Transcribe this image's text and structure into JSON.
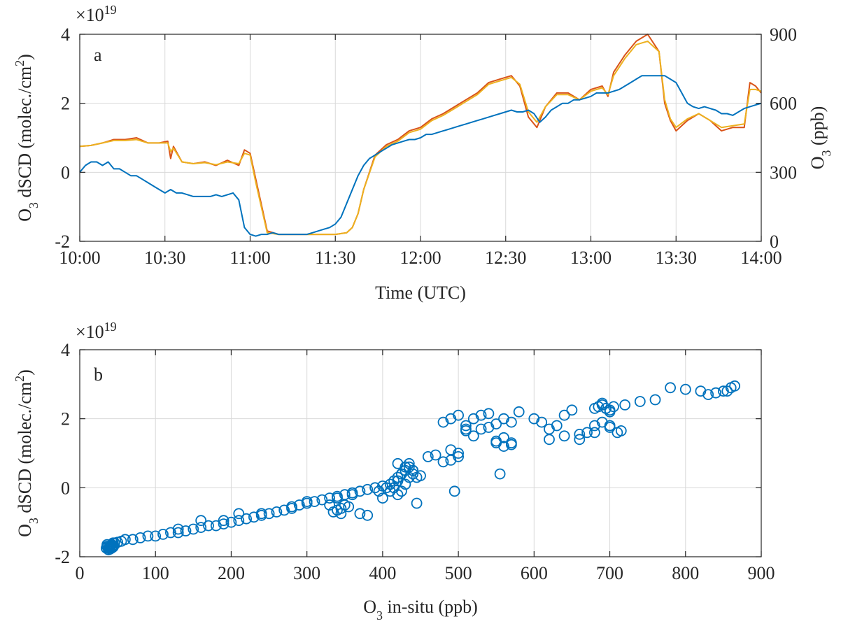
{
  "chart_data": [
    {
      "type": "line",
      "panel_label": "a",
      "xlabel": "Time (UTC)",
      "ylabel_left": {
        "base": "O",
        "sub": "3",
        "rest": " dSCD (molec./cm",
        "sup": "2",
        "close": ")"
      },
      "ylabel_right": {
        "base": "O",
        "sub": "3",
        "rest": " (ppb)"
      },
      "y_exponent": {
        "prefix": "×10",
        "power": "19"
      },
      "xlim": [
        0,
        240
      ],
      "ylim_left": [
        -2,
        4
      ],
      "ylim_right": [
        0,
        900
      ],
      "x_ticks": [
        0,
        30,
        60,
        90,
        120,
        150,
        180,
        210,
        240
      ],
      "x_tick_labels": [
        "10:00",
        "10:30",
        "11:00",
        "11:30",
        "12:00",
        "12:30",
        "13:00",
        "13:30",
        "14:00"
      ],
      "y_ticks_left": [
        -2,
        0,
        2,
        4
      ],
      "y_tick_labels_left": [
        "-2",
        "0",
        "2",
        "4"
      ],
      "y_ticks_right": [
        0,
        300,
        600,
        900
      ],
      "y_tick_labels_right": [
        "0",
        "300",
        "600",
        "900"
      ],
      "grid": true,
      "series": [
        {
          "axis": "left",
          "color": "#0072bd",
          "x": [
            0,
            2,
            4,
            6,
            8,
            10,
            12,
            14,
            16,
            18,
            20,
            22,
            24,
            26,
            28,
            30,
            32,
            34,
            36,
            38,
            40,
            42,
            44,
            46,
            48,
            50,
            52,
            54,
            56,
            58,
            60,
            62,
            64,
            66,
            68,
            70,
            72,
            74,
            76,
            78,
            80,
            82,
            84,
            86,
            88,
            90,
            92,
            94,
            96,
            98,
            100,
            102,
            104,
            106,
            108,
            110,
            112,
            114,
            116,
            118,
            120,
            122,
            124,
            126,
            128,
            130,
            132,
            134,
            136,
            138,
            140,
            142,
            144,
            146,
            148,
            150,
            152,
            154,
            156,
            158,
            160,
            162,
            164,
            166,
            168,
            170,
            172,
            174,
            176,
            178,
            180,
            182,
            184,
            186,
            188,
            190,
            192,
            194,
            196,
            198,
            200,
            202,
            204,
            206,
            208,
            210,
            212,
            214,
            216,
            218,
            220,
            222,
            224,
            226,
            228,
            230,
            232,
            234,
            236,
            238,
            240
          ],
          "y": [
            0.0,
            0.2,
            0.3,
            0.3,
            0.2,
            0.3,
            0.1,
            0.1,
            0.0,
            -0.1,
            -0.1,
            -0.2,
            -0.3,
            -0.4,
            -0.5,
            -0.6,
            -0.5,
            -0.6,
            -0.6,
            -0.65,
            -0.7,
            -0.7,
            -0.7,
            -0.7,
            -0.65,
            -0.7,
            -0.65,
            -0.6,
            -0.8,
            -1.6,
            -1.8,
            -1.85,
            -1.8,
            -1.8,
            -1.75,
            -1.8,
            -1.8,
            -1.8,
            -1.8,
            -1.8,
            -1.8,
            -1.75,
            -1.7,
            -1.65,
            -1.6,
            -1.5,
            -1.3,
            -0.9,
            -0.5,
            -0.1,
            0.2,
            0.4,
            0.5,
            0.6,
            0.7,
            0.8,
            0.85,
            0.9,
            0.95,
            0.95,
            1.0,
            1.1,
            1.1,
            1.15,
            1.2,
            1.25,
            1.3,
            1.35,
            1.4,
            1.45,
            1.5,
            1.55,
            1.6,
            1.65,
            1.7,
            1.75,
            1.8,
            1.75,
            1.75,
            1.8,
            1.7,
            1.45,
            1.6,
            1.8,
            1.9,
            2.0,
            2.0,
            2.1,
            2.1,
            2.15,
            2.2,
            2.3,
            2.3,
            2.3,
            2.35,
            2.4,
            2.5,
            2.6,
            2.7,
            2.8,
            2.8,
            2.8,
            2.8,
            2.8,
            2.7,
            2.6,
            2.3,
            2.0,
            1.9,
            1.85,
            1.9,
            1.85,
            1.8,
            1.7,
            1.7,
            1.65,
            1.75,
            1.85,
            1.9,
            1.95,
            2.0
          ]
        },
        {
          "axis": "left",
          "color": "#d95319",
          "x": [
            0,
            4,
            8,
            12,
            16,
            20,
            24,
            28,
            31,
            32,
            33,
            36,
            40,
            44,
            48,
            52,
            56,
            58,
            60,
            62,
            66,
            70,
            74,
            78,
            82,
            86,
            90,
            94,
            96,
            98,
            100,
            104,
            108,
            112,
            116,
            120,
            124,
            128,
            132,
            136,
            140,
            144,
            148,
            152,
            155,
            158,
            161,
            164,
            168,
            172,
            176,
            180,
            184,
            186,
            188,
            192,
            196,
            200,
            204,
            206,
            208,
            210,
            214,
            218,
            222,
            226,
            230,
            234,
            236,
            238,
            240
          ],
          "y": [
            0.75,
            0.78,
            0.85,
            0.95,
            0.95,
            1.0,
            0.85,
            0.85,
            0.9,
            0.4,
            0.75,
            0.3,
            0.25,
            0.3,
            0.2,
            0.35,
            0.2,
            0.65,
            0.55,
            -0.2,
            -1.7,
            -1.8,
            -1.8,
            -1.8,
            -1.8,
            -1.8,
            -1.8,
            -1.75,
            -1.6,
            -1.2,
            -0.5,
            0.5,
            0.8,
            0.95,
            1.2,
            1.3,
            1.55,
            1.7,
            1.9,
            2.1,
            2.3,
            2.6,
            2.7,
            2.8,
            2.5,
            1.6,
            1.3,
            1.9,
            2.3,
            2.3,
            2.1,
            2.4,
            2.5,
            2.2,
            2.9,
            3.4,
            3.8,
            4.0,
            3.5,
            2.0,
            1.5,
            1.2,
            1.5,
            1.7,
            1.5,
            1.2,
            1.3,
            1.3,
            2.6,
            2.5,
            2.3
          ]
        },
        {
          "axis": "left",
          "color": "#edb120",
          "x": [
            0,
            4,
            8,
            12,
            16,
            20,
            24,
            28,
            31,
            32,
            33,
            36,
            40,
            44,
            48,
            52,
            56,
            58,
            60,
            62,
            66,
            70,
            74,
            78,
            82,
            86,
            90,
            94,
            96,
            98,
            100,
            104,
            108,
            112,
            116,
            120,
            124,
            128,
            132,
            136,
            140,
            144,
            148,
            152,
            155,
            158,
            161,
            164,
            168,
            172,
            176,
            180,
            184,
            186,
            188,
            192,
            196,
            200,
            204,
            206,
            208,
            210,
            214,
            218,
            222,
            226,
            230,
            234,
            236,
            238,
            240
          ],
          "y": [
            0.75,
            0.78,
            0.85,
            0.92,
            0.92,
            0.95,
            0.85,
            0.85,
            0.85,
            0.6,
            0.7,
            0.3,
            0.25,
            0.28,
            0.22,
            0.3,
            0.25,
            0.55,
            0.5,
            -0.3,
            -1.75,
            -1.8,
            -1.8,
            -1.8,
            -1.8,
            -1.8,
            -1.8,
            -1.75,
            -1.6,
            -1.2,
            -0.5,
            0.45,
            0.75,
            0.9,
            1.15,
            1.25,
            1.5,
            1.65,
            1.85,
            2.05,
            2.25,
            2.55,
            2.65,
            2.75,
            2.55,
            1.75,
            1.45,
            1.9,
            2.25,
            2.25,
            2.1,
            2.35,
            2.45,
            2.25,
            2.8,
            3.3,
            3.7,
            3.8,
            3.5,
            2.1,
            1.55,
            1.3,
            1.55,
            1.7,
            1.5,
            1.3,
            1.35,
            1.4,
            2.4,
            2.4,
            2.35
          ]
        }
      ]
    },
    {
      "type": "scatter",
      "panel_label": "b",
      "xlabel": {
        "base": "O",
        "sub": "3",
        "rest": " in-situ (ppb)"
      },
      "ylabel": {
        "base": "O",
        "sub": "3",
        "rest": " dSCD (molec./cm",
        "sup": "2",
        "close": ")"
      },
      "y_exponent": {
        "prefix": "×10",
        "power": "19"
      },
      "xlim": [
        0,
        900
      ],
      "ylim": [
        -2,
        4
      ],
      "x_ticks": [
        0,
        100,
        200,
        300,
        400,
        500,
        600,
        700,
        800,
        900
      ],
      "x_tick_labels": [
        "0",
        "100",
        "200",
        "300",
        "400",
        "500",
        "600",
        "700",
        "800",
        "900"
      ],
      "y_ticks": [
        -2,
        0,
        2,
        4
      ],
      "y_tick_labels": [
        "-2",
        "0",
        "2",
        "4"
      ],
      "grid": true,
      "marker": "circle-open",
      "color": "#0072bd",
      "x": [
        35,
        36,
        37,
        38,
        39,
        40,
        41,
        42,
        43,
        44,
        45,
        38,
        40,
        42,
        36,
        44,
        46,
        50,
        55,
        60,
        70,
        80,
        90,
        100,
        110,
        120,
        130,
        140,
        150,
        160,
        170,
        180,
        190,
        200,
        210,
        220,
        230,
        240,
        250,
        260,
        270,
        280,
        290,
        300,
        310,
        320,
        330,
        340,
        350,
        360,
        370,
        380,
        390,
        400,
        130,
        160,
        190,
        210,
        240,
        280,
        300,
        330,
        345,
        335,
        340,
        350,
        360,
        370,
        380,
        345,
        355,
        340,
        395,
        400,
        405,
        410,
        415,
        420,
        425,
        430,
        435,
        440,
        445,
        410,
        415,
        420,
        425,
        430,
        435,
        440,
        420,
        425,
        430,
        435,
        445,
        420,
        430,
        440,
        450,
        460,
        470,
        480,
        490,
        500,
        510,
        520,
        530,
        540,
        550,
        560,
        570,
        580,
        480,
        490,
        500,
        510,
        520,
        530,
        540,
        550,
        560,
        570,
        490,
        500,
        510,
        550,
        560,
        570,
        555,
        495,
        600,
        610,
        620,
        630,
        640,
        650,
        660,
        670,
        680,
        690,
        700,
        710,
        620,
        640,
        660,
        680,
        700,
        715,
        680,
        685,
        690,
        695,
        700,
        705,
        690,
        695,
        700,
        720,
        740,
        760,
        780,
        800,
        820,
        840,
        850,
        855,
        860,
        865,
        830
      ],
      "y": [
        -1.75,
        -1.7,
        -1.7,
        -1.75,
        -1.72,
        -1.7,
        -1.68,
        -1.65,
        -1.7,
        -1.72,
        -1.68,
        -1.8,
        -1.78,
        -1.75,
        -1.65,
        -1.6,
        -1.6,
        -1.58,
        -1.55,
        -1.5,
        -1.5,
        -1.45,
        -1.4,
        -1.4,
        -1.35,
        -1.3,
        -1.3,
        -1.25,
        -1.2,
        -1.15,
        -1.1,
        -1.1,
        -1.05,
        -1.0,
        -0.95,
        -0.9,
        -0.85,
        -0.8,
        -0.75,
        -0.7,
        -0.65,
        -0.6,
        -0.5,
        -0.45,
        -0.4,
        -0.35,
        -0.3,
        -0.25,
        -0.2,
        -0.15,
        -0.1,
        -0.05,
        0.0,
        0.05,
        -1.2,
        -0.95,
        -0.95,
        -0.75,
        -0.75,
        -0.55,
        -0.4,
        -0.5,
        -0.75,
        -0.7,
        -0.3,
        -0.5,
        -0.2,
        -0.75,
        -0.8,
        -0.6,
        -0.55,
        -0.65,
        -0.1,
        -0.3,
        0.0,
        0.1,
        0.2,
        0.3,
        0.4,
        0.5,
        0.6,
        0.5,
        0.3,
        -0.1,
        0.0,
        0.2,
        0.4,
        0.6,
        0.7,
        0.4,
        -0.2,
        -0.1,
        0.1,
        0.3,
        -0.45,
        0.7,
        0.6,
        0.5,
        0.35,
        0.9,
        0.95,
        1.9,
        2.0,
        2.1,
        1.8,
        2.0,
        2.1,
        2.15,
        1.85,
        2.0,
        1.9,
        2.2,
        0.75,
        0.8,
        0.9,
        1.65,
        1.5,
        1.7,
        1.75,
        1.3,
        1.2,
        1.3,
        1.1,
        1.0,
        1.7,
        1.35,
        1.45,
        1.25,
        0.4,
        -0.1,
        2.0,
        1.9,
        1.7,
        1.8,
        2.1,
        2.25,
        1.55,
        1.6,
        1.8,
        1.9,
        1.75,
        1.6,
        1.4,
        1.5,
        1.4,
        1.6,
        1.8,
        1.65,
        2.3,
        2.35,
        2.4,
        2.3,
        2.25,
        2.35,
        2.45,
        2.3,
        2.2,
        2.4,
        2.5,
        2.55,
        2.9,
        2.85,
        2.8,
        2.75,
        2.8,
        2.8,
        2.9,
        2.95,
        2.7
      ]
    }
  ]
}
